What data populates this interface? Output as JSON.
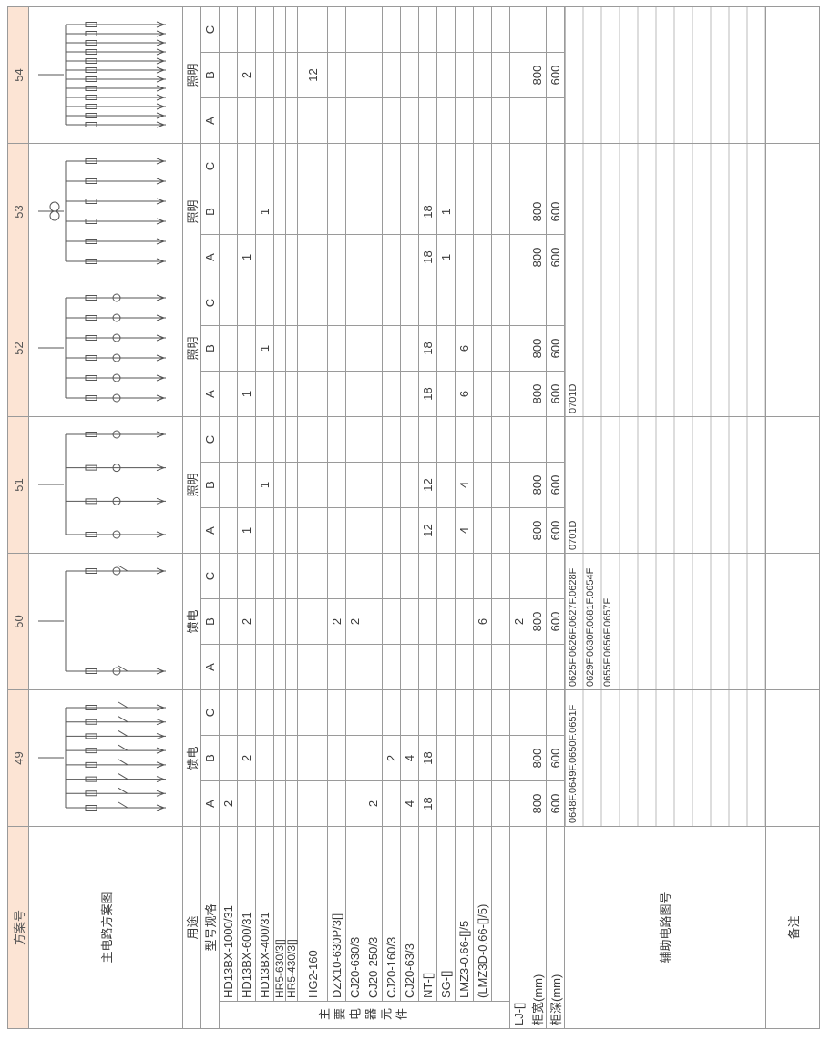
{
  "header": {
    "label": "方案号",
    "schemes": [
      "49",
      "50",
      "51",
      "52",
      "53",
      "54"
    ]
  },
  "diagram_label": "主电路方案图",
  "purpose": {
    "label": "用途",
    "values": [
      "馈电",
      "馈电",
      "照明",
      "照明",
      "照明",
      "照明"
    ]
  },
  "spec_label": "型号规格",
  "phases": [
    "A",
    "B",
    "C"
  ],
  "group_label": "主要电器元件",
  "components": [
    {
      "name": "HD13BX-1000/31",
      "values": [
        2,
        null,
        null,
        null,
        null,
        null,
        null,
        null,
        null,
        null,
        null,
        null,
        null,
        null,
        null,
        null,
        null,
        null
      ]
    },
    {
      "name": "HD13BX-600/31",
      "values": [
        null,
        2,
        null,
        null,
        2,
        null,
        1,
        null,
        null,
        1,
        null,
        null,
        1,
        null,
        null,
        null,
        2,
        null
      ]
    },
    {
      "name": "HD13BX-400/31",
      "values": [
        null,
        null,
        null,
        null,
        null,
        null,
        null,
        1,
        null,
        null,
        1,
        null,
        null,
        1,
        null,
        null,
        null,
        null
      ]
    },
    {
      "name": "HR5-630/3[]",
      "values": [
        null,
        null,
        null,
        null,
        null,
        null,
        null,
        null,
        null,
        null,
        null,
        null,
        null,
        null,
        null,
        null,
        null,
        null
      ]
    },
    {
      "name": "HR5-430/3[]",
      "values": [
        null,
        null,
        null,
        null,
        null,
        null,
        null,
        null,
        null,
        null,
        null,
        null,
        null,
        null,
        null,
        null,
        null,
        null
      ]
    },
    {
      "name": "HG2-160",
      "values": [
        null,
        null,
        null,
        null,
        null,
        null,
        null,
        null,
        null,
        null,
        null,
        null,
        null,
        null,
        null,
        null,
        12,
        null
      ]
    },
    {
      "name": "DZX10-630P/3[]",
      "values": [
        null,
        null,
        null,
        null,
        2,
        null,
        null,
        null,
        null,
        null,
        null,
        null,
        null,
        null,
        null,
        null,
        null,
        null
      ]
    },
    {
      "name": "CJ20-630/3",
      "values": [
        null,
        null,
        null,
        null,
        2,
        null,
        null,
        null,
        null,
        null,
        null,
        null,
        null,
        null,
        null,
        null,
        null,
        null
      ]
    },
    {
      "name": "CJ20-250/3",
      "values": [
        2,
        null,
        null,
        null,
        null,
        null,
        null,
        null,
        null,
        null,
        null,
        null,
        null,
        null,
        null,
        null,
        null,
        null
      ]
    },
    {
      "name": "CJ20-160/3",
      "values": [
        null,
        2,
        null,
        null,
        null,
        null,
        null,
        null,
        null,
        null,
        null,
        null,
        null,
        null,
        null,
        null,
        null,
        null
      ]
    },
    {
      "name": "CJ20-63/3",
      "values": [
        4,
        4,
        null,
        null,
        null,
        null,
        null,
        null,
        null,
        null,
        null,
        null,
        null,
        null,
        null,
        null,
        null,
        null
      ]
    },
    {
      "name": "NT-[]",
      "values": [
        18,
        18,
        null,
        null,
        null,
        null,
        12,
        12,
        null,
        18,
        18,
        null,
        18,
        18,
        null,
        null,
        null,
        null
      ]
    },
    {
      "name": "SG-[]",
      "values": [
        null,
        null,
        null,
        null,
        null,
        null,
        null,
        null,
        null,
        null,
        null,
        null,
        1,
        1,
        null,
        null,
        null,
        null
      ]
    },
    {
      "name": "LMZ3-0.66-[]/5",
      "values": [
        null,
        null,
        null,
        null,
        null,
        null,
        4,
        4,
        null,
        6,
        6,
        null,
        null,
        null,
        null,
        null,
        null,
        null
      ]
    },
    {
      "name": "(LMZ3D-0.66-[]/5)",
      "values": [
        null,
        null,
        null,
        null,
        6,
        null,
        null,
        null,
        null,
        null,
        null,
        null,
        null,
        null,
        null,
        null,
        null,
        null
      ]
    },
    {
      "name": null,
      "values": [
        null,
        null,
        null,
        null,
        null,
        null,
        null,
        null,
        null,
        null,
        null,
        null,
        null,
        null,
        null,
        null,
        null,
        null
      ]
    }
  ],
  "other_rows": [
    {
      "name": "LJ-[]",
      "values": [
        null,
        null,
        null,
        null,
        2,
        null,
        null,
        null,
        null,
        null,
        null,
        null,
        null,
        null,
        null,
        null,
        null,
        null
      ]
    },
    {
      "name": "柜宽(mm)",
      "values": [
        800,
        800,
        null,
        null,
        800,
        null,
        800,
        800,
        null,
        800,
        800,
        null,
        800,
        800,
        null,
        null,
        800,
        null
      ]
    },
    {
      "name": "柜深(mm)",
      "values": [
        600,
        600,
        null,
        null,
        600,
        null,
        600,
        600,
        null,
        600,
        600,
        null,
        600,
        600,
        null,
        null,
        600,
        null
      ]
    }
  ],
  "aux": {
    "label": "辅助电路图号",
    "values": [
      [
        "0648F.0649F.0650F.0651F"
      ],
      [
        "0625F.0626F.0627F.0628F",
        "0629F.0630F.0681F.0654F",
        "0655F.0656F.0657F"
      ],
      [
        "0701D"
      ],
      [
        "0701D"
      ],
      [],
      []
    ]
  },
  "remarks": {
    "label": "备注"
  }
}
